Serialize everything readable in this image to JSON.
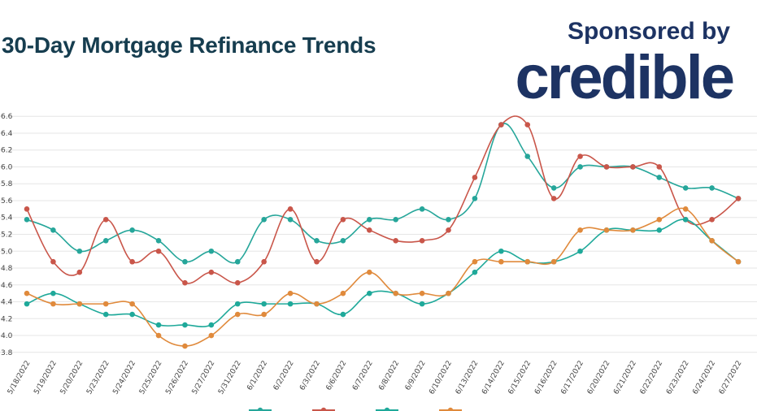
{
  "title": "30-Day Mortgage Refinance Trends",
  "sponsor": {
    "label": "Sponsored by",
    "brand": "credible"
  },
  "colors": {
    "title": "#163d4f",
    "brand": "#1d3363",
    "grid": "#e6e6e6"
  },
  "chart_data": {
    "type": "line",
    "categories": [
      "5/18/2022",
      "5/19/2022",
      "5/20/2022",
      "5/23/2022",
      "5/24/2022",
      "5/25/2022",
      "5/26/2022",
      "5/27/2022",
      "5/31/2022",
      "6/1/2022",
      "6/2/2022",
      "6/3/2022",
      "6/6/2022",
      "6/7/2022",
      "6/8/2022",
      "6/9/2022",
      "6/10/2022",
      "6/13/2022",
      "6/14/2022",
      "6/15/2022",
      "6/16/2022",
      "6/17/2022",
      "6/20/2022",
      "6/21/2022",
      "6/22/2022",
      "6/23/2022",
      "6/24/2022",
      "6/27/2022"
    ],
    "yticks": [
      "3.8",
      "4.0",
      "4.2",
      "4.4",
      "4.6",
      "4.8",
      "5.0",
      "5.2",
      "5.4",
      "5.6",
      "5.8",
      "6.0",
      "6.2",
      "6.4",
      "6.6"
    ],
    "ylim": [
      3.75,
      6.65
    ],
    "grid": true,
    "legend": "bottom",
    "series": [
      {
        "color": "#26a69a",
        "values": [
          5.375,
          5.25,
          5.0,
          5.125,
          5.25,
          5.125,
          4.875,
          5.0,
          4.875,
          5.375,
          5.375,
          5.125,
          5.125,
          5.375,
          5.375,
          5.5,
          5.375,
          5.625,
          6.5,
          6.125,
          5.75,
          6.0,
          6.0,
          6.0,
          5.875,
          5.75,
          5.75,
          5.625
        ]
      },
      {
        "color": "#c9564a",
        "values": [
          5.5,
          4.875,
          4.75,
          5.375,
          4.875,
          5.0,
          4.625,
          4.75,
          4.625,
          4.875,
          5.5,
          4.875,
          5.375,
          5.25,
          5.125,
          5.125,
          5.25,
          5.875,
          6.5,
          6.5,
          5.625,
          6.125,
          6.0,
          6.0,
          6.0,
          5.375,
          5.375,
          5.625
        ]
      },
      {
        "color": "#1fa99a",
        "values": [
          4.375,
          4.5,
          4.375,
          4.25,
          4.25,
          4.125,
          4.125,
          4.125,
          4.375,
          4.375,
          4.375,
          4.375,
          4.25,
          4.5,
          4.5,
          4.375,
          4.5,
          4.75,
          5.0,
          4.875,
          4.875,
          5.0,
          5.25,
          5.25,
          5.25,
          5.375,
          5.125,
          4.875
        ]
      },
      {
        "color": "#e08a3c",
        "values": [
          4.5,
          4.375,
          4.375,
          4.375,
          4.375,
          4.0,
          3.875,
          4.0,
          4.25,
          4.25,
          4.5,
          4.375,
          4.5,
          4.75,
          4.5,
          4.5,
          4.5,
          4.875,
          4.875,
          4.875,
          4.875,
          5.25,
          5.25,
          5.25,
          5.375,
          5.5,
          5.125,
          4.875
        ]
      }
    ]
  }
}
